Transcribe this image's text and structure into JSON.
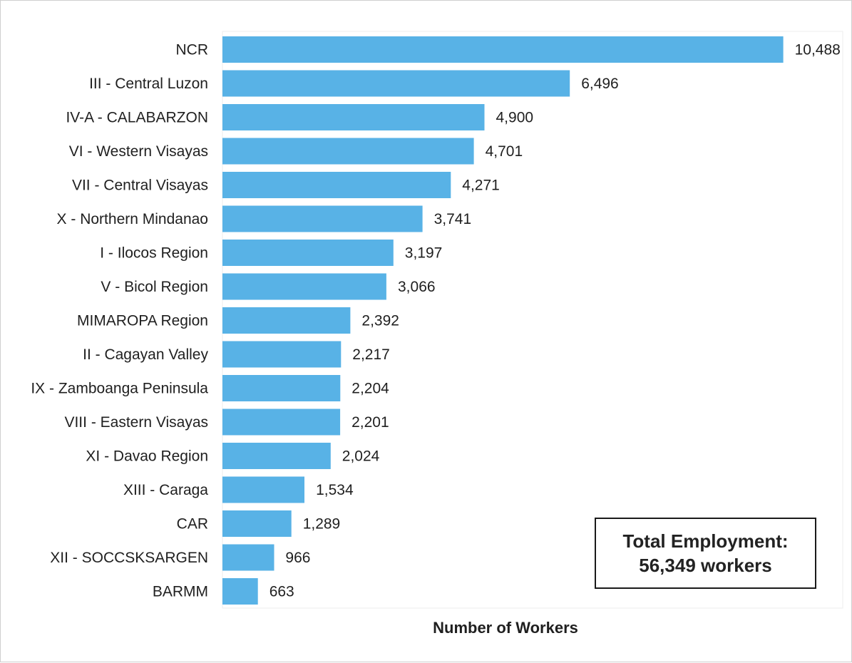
{
  "chart_data": {
    "type": "bar",
    "orientation": "horizontal",
    "categories": [
      "NCR",
      "III - Central Luzon",
      "IV-A - CALABARZON",
      "VI - Western Visayas",
      "VII - Central Visayas",
      "X - Northern Mindanao",
      "I - Ilocos Region",
      "V - Bicol Region",
      "MIMAROPA Region",
      "II - Cagayan Valley",
      "IX - Zamboanga Peninsula",
      "VIII - Eastern Visayas",
      "XI - Davao Region",
      "XIII - Caraga",
      "CAR",
      "XII - SOCCSKSARGEN",
      "BARMM"
    ],
    "values": [
      10488,
      6496,
      4900,
      4701,
      4271,
      3741,
      3197,
      3066,
      2392,
      2217,
      2204,
      2201,
      2024,
      1534,
      1289,
      966,
      663
    ],
    "value_labels": [
      "10,488",
      "6,496",
      "4,900",
      "4,701",
      "4,271",
      "3,741",
      "3,197",
      "3,066",
      "2,392",
      "2,217",
      "2,204",
      "2,201",
      "2,024",
      "1,534",
      "1,289",
      "966",
      "663"
    ],
    "xlabel": "Number of Workers",
    "ylabel": "",
    "xlim": [
      0,
      11600
    ],
    "grid": false,
    "legend": "none",
    "bar_color": "#58b2e6"
  },
  "annotation": {
    "line1": "Total Employment:",
    "line2": "56,349 workers"
  }
}
